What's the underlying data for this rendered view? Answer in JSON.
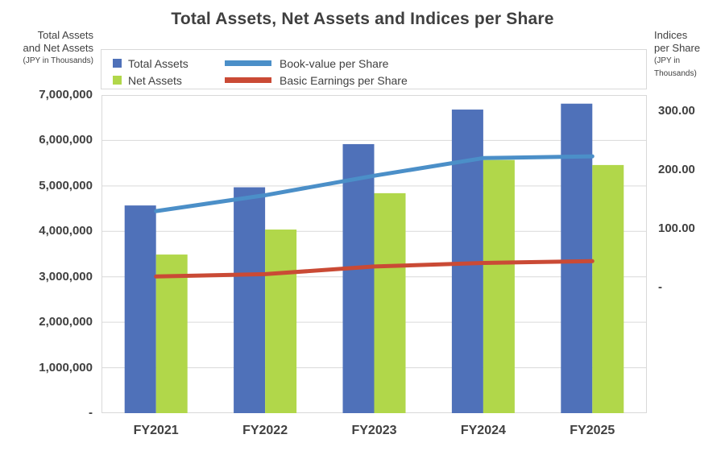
{
  "title": "Total Assets, Net Assets and Indices per Share",
  "left_axis_header": {
    "line1": "Total Assets",
    "line2": "and Net Assets",
    "units": "(JPY in Thousands)"
  },
  "right_axis_header": {
    "line1": "Indices",
    "line2": "per Share",
    "units": "(JPY in Thousands)"
  },
  "legend": [
    {
      "label": "Total Assets",
      "swatch": "square",
      "color": "#4f71b9"
    },
    {
      "label": "Net Assets",
      "swatch": "square",
      "color": "#b1d74a"
    },
    {
      "label": "Book-value per Share",
      "swatch": "line",
      "color": "#4b8fc8"
    },
    {
      "label": "Basic Earnings per Share",
      "swatch": "line",
      "color": "#ca4a35"
    }
  ],
  "chart_data": {
    "type": "combo-bar-line",
    "categories": [
      "FY2021",
      "FY2022",
      "FY2023",
      "FY2024",
      "FY2025"
    ],
    "bar_series": [
      {
        "name": "Total Assets",
        "axis": "left",
        "color": "#4f71b9",
        "values": [
          4570000,
          4970000,
          5920000,
          6680000,
          6810000
        ]
      },
      {
        "name": "Net Assets",
        "axis": "left",
        "color": "#b1d74a",
        "values": [
          3490000,
          4040000,
          4840000,
          5570000,
          5460000
        ]
      }
    ],
    "line_series": [
      {
        "name": "Book-value per Share",
        "axis": "right",
        "color": "#4b8fc8",
        "values": [
          130,
          157,
          190,
          220,
          223
        ]
      },
      {
        "name": "Basic Earnings per Share",
        "axis": "right",
        "color": "#ca4a35",
        "values": [
          19,
          23,
          36,
          42,
          45
        ]
      }
    ],
    "left_axis": {
      "title": "Total Assets and Net Assets (JPY in Thousands)",
      "min": 0,
      "max": 7000000,
      "tick_step": 1000000,
      "tick_values": [
        0,
        1000000,
        2000000,
        3000000,
        4000000,
        5000000,
        6000000,
        7000000
      ],
      "tick_labels": [
        "-",
        "1,000,000",
        "2,000,000",
        "3,000,000",
        "4,000,000",
        "5,000,000",
        "6,000,000",
        "7,000,000"
      ]
    },
    "right_axis": {
      "title": "Indices per Share (JPY in Thousands)",
      "min": -213,
      "max": 327,
      "tick_values": [
        0,
        100,
        200,
        300
      ],
      "tick_labels": [
        "-",
        "100.00",
        "200.00",
        "300.00"
      ]
    },
    "grid": "horizontal",
    "legend_position": "top",
    "colors": {
      "gridline": "#d9d9d9",
      "plot_border": "#d9d9d9",
      "text": "#404040"
    }
  }
}
